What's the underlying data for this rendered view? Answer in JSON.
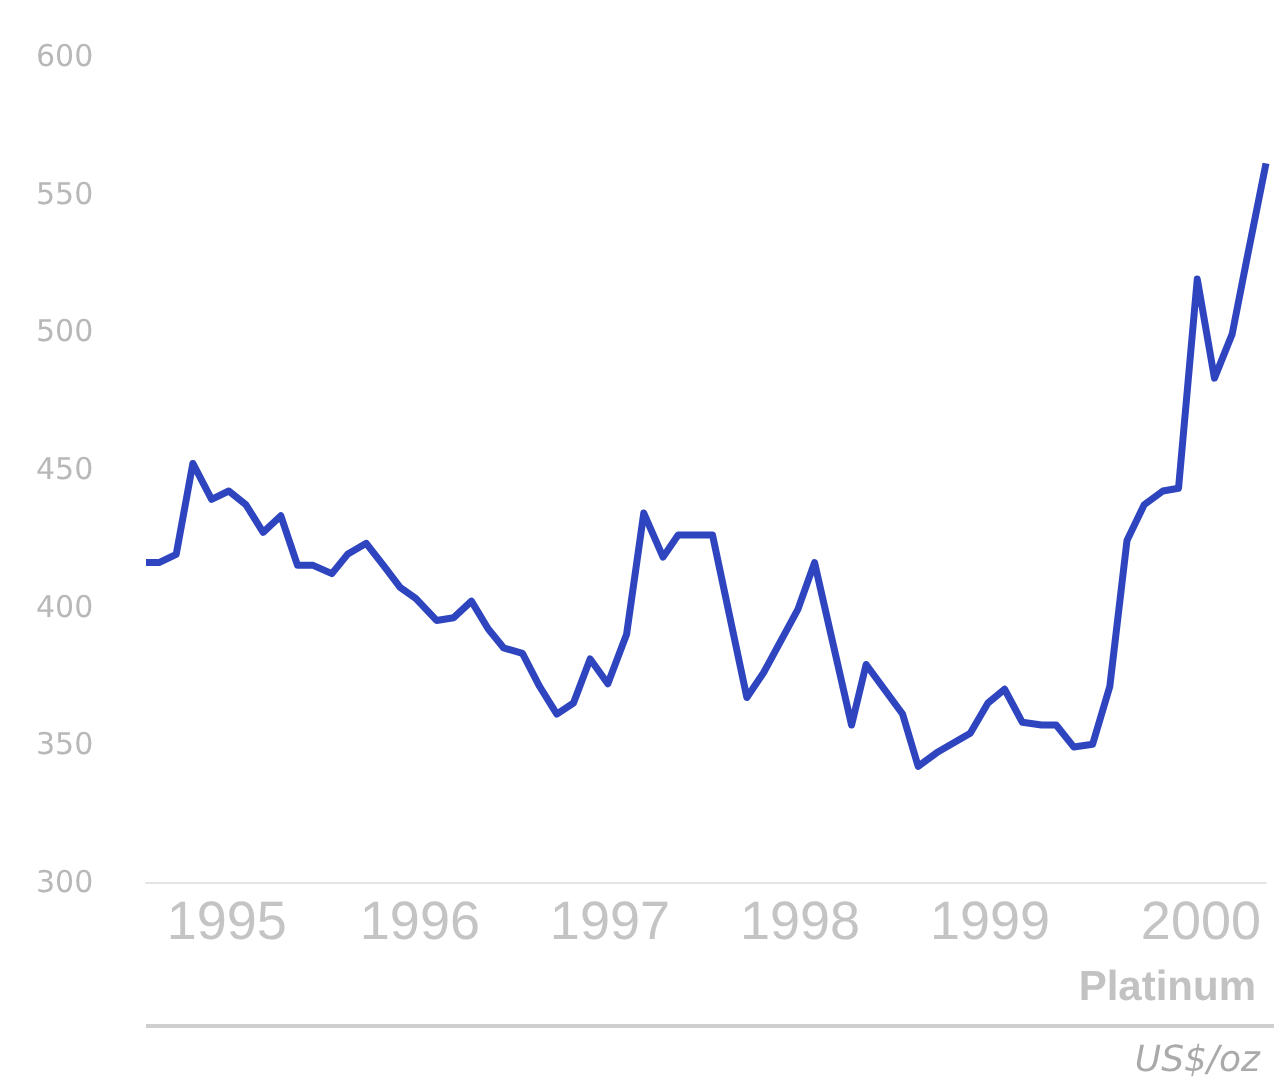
{
  "chart_data": {
    "type": "line",
    "title": "Platinum",
    "subtitle": "US$/oz",
    "x": [
      "1995-01-01",
      "1995-01-26",
      "1995-02-28",
      "1995-04-01",
      "1995-05-07",
      "1995-06-09",
      "1995-07-12",
      "1995-08-14",
      "1995-09-17",
      "1995-10-19",
      "1995-11-18",
      "1995-12-24",
      "1996-01-23",
      "1996-02-28",
      "1996-04-01",
      "1996-05-03",
      "1996-06-02",
      "1996-07-12",
      "1996-08-14",
      "1996-09-17",
      "1996-10-19",
      "1996-11-18",
      "1996-12-24",
      "1997-01-26",
      "1997-02-28",
      "1997-04-01",
      "1997-05-03",
      "1997-06-06",
      "1997-07-12",
      "1997-08-14",
      "1997-09-20",
      "1997-10-19",
      "1997-12-24",
      "1998-02-28",
      "1998-04-01",
      "1998-06-06",
      "1998-07-08",
      "1998-09-17",
      "1998-10-15",
      "1998-12-24",
      "1999-01-23",
      "1999-02-28",
      "1999-05-03",
      "1999-06-06",
      "1999-07-08",
      "1999-08-11",
      "1999-09-17",
      "1999-10-15",
      "1999-11-18",
      "1999-12-24",
      "2000-01-26",
      "2000-02-28",
      "2000-04-01",
      "2000-05-07",
      "2000-06-06",
      "2000-07-12",
      "2000-08-14",
      "2000-09-17",
      "2000-10-15",
      "2000-11-21"
    ],
    "series": [
      {
        "color": "#2f45c0",
        "values": [
          416,
          416,
          419,
          452,
          439,
          442,
          437,
          427,
          433,
          415,
          415,
          412,
          419,
          423,
          415,
          407,
          403,
          395,
          396,
          402,
          392,
          385,
          383,
          371,
          361,
          365,
          381,
          372,
          390,
          434,
          418,
          426,
          426,
          367,
          376,
          399,
          416,
          357,
          379,
          361,
          342,
          347,
          354,
          365,
          370,
          358,
          357,
          357,
          349,
          350,
          371,
          424,
          437,
          442,
          443,
          519,
          483,
          499,
          526,
          561
        ]
      }
    ],
    "xlim": [
      "1995-01-01",
      "2000-11-21"
    ],
    "xticks": [
      {
        "value": "1995-06-05",
        "label": "1995"
      },
      {
        "value": "1996-06-10",
        "label": "1996"
      },
      {
        "value": "1997-06-10",
        "label": "1997"
      },
      {
        "value": "1998-06-10",
        "label": "1998"
      },
      {
        "value": "1999-06-10",
        "label": "1999"
      },
      {
        "value": "2000-07-19",
        "label": "2000"
      }
    ],
    "ylim": [
      300,
      600
    ],
    "yticks": [
      300,
      350,
      400,
      450,
      500,
      550,
      600
    ],
    "grid": false,
    "marker": "none",
    "line_style": "solid"
  }
}
